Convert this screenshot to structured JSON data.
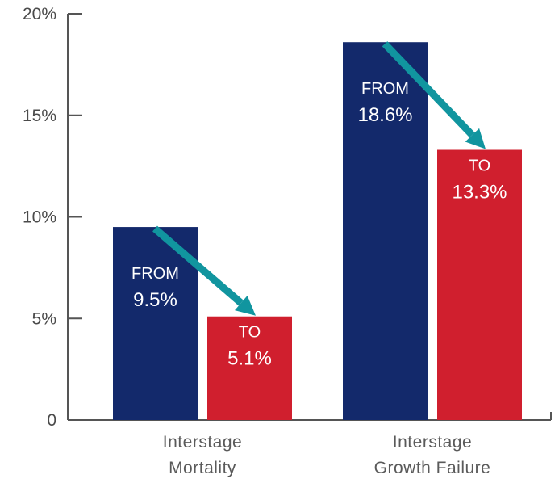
{
  "chart_data": {
    "type": "bar",
    "categories": [
      [
        "Interstage",
        "Mortality"
      ],
      [
        "Interstage",
        "Growth Failure"
      ]
    ],
    "series": [
      {
        "values": [
          9.5,
          18.6
        ],
        "color": "#13296b",
        "label_word": "FROM"
      },
      {
        "values": [
          5.1,
          13.3
        ],
        "color": "#d01f2e",
        "label_word": "TO"
      }
    ],
    "value_labels": [
      [
        "9.5%",
        "18.6%"
      ],
      [
        "5.1%",
        "13.3%"
      ]
    ],
    "y_ticks": [
      {
        "value": 0,
        "label": "0"
      },
      {
        "value": 5,
        "label": "5%"
      },
      {
        "value": 10,
        "label": "10%"
      },
      {
        "value": 15,
        "label": "15%"
      },
      {
        "value": 20,
        "label": "20%"
      }
    ],
    "ylim": [
      0,
      20
    ],
    "arrow_color": "#11959f",
    "axis_color": "#555555",
    "grid": false,
    "legend": "none",
    "title": "",
    "xlabel": "",
    "ylabel": ""
  }
}
